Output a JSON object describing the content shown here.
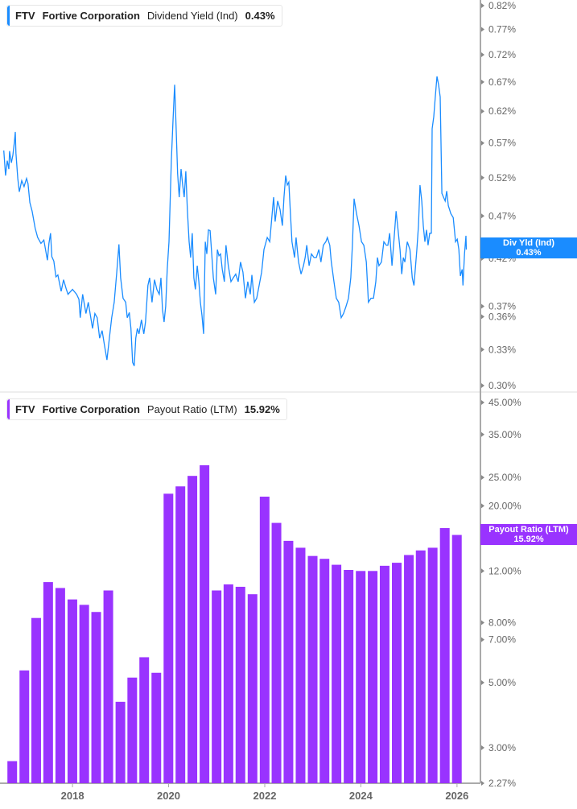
{
  "colors": {
    "yield_line": "#1a8cff",
    "payout_bar": "#9933ff",
    "axis": "#aaaaaa",
    "tick_text": "#666666"
  },
  "top_legend": {
    "ticker": "FTV",
    "company": "Fortive Corporation",
    "metric": "Dividend Yield (Ind)",
    "value": "0.43%"
  },
  "top_tag": {
    "label": "Div Yld (Ind)",
    "value": "0.43%"
  },
  "bottom_legend": {
    "ticker": "FTV",
    "company": "Fortive Corporation",
    "metric": "Payout Ratio (LTM)",
    "value": "15.92%"
  },
  "bottom_tag": {
    "label": "Payout Ratio (LTM)",
    "value": "15.92%"
  },
  "x_tick_labels": [
    "2018",
    "2020",
    "2022",
    "2024",
    "2026"
  ],
  "chart_data": [
    {
      "type": "line",
      "series_label": "Dividend Yield (Ind)",
      "yscale": "log",
      "ylim": [
        0.3,
        0.82
      ],
      "xlim": [
        "2016-06-29",
        "2026-06-28"
      ],
      "y_ticks": [
        0.82,
        0.77,
        0.72,
        0.67,
        0.62,
        0.57,
        0.52,
        0.47,
        0.42,
        0.37,
        0.36,
        0.33,
        0.3
      ],
      "y_tick_labels": [
        "0.82%",
        "0.77%",
        "0.72%",
        "0.67%",
        "0.62%",
        "0.57%",
        "0.52%",
        "0.47%",
        "0.42%",
        "0.37%",
        "0.36%",
        "0.33%",
        "0.30%"
      ],
      "last_value": 0.43,
      "x": [
        "2016-07-28",
        "2016-08-10",
        "2016-08-23",
        "2016-09-04",
        "2016-09-10",
        "2016-09-23",
        "2016-10-05",
        "2016-10-17",
        "2016-10-23",
        "2016-10-28",
        "2016-11-11",
        "2016-11-23",
        "2016-12-11",
        "2016-12-29",
        "2017-01-17",
        "2017-01-28",
        "2017-02-11",
        "2017-02-28",
        "2017-03-23",
        "2017-04-11",
        "2017-05-06",
        "2017-05-28",
        "2017-06-24",
        "2017-07-06",
        "2017-07-18",
        "2017-07-28",
        "2017-08-12",
        "2017-08-28",
        "2017-09-12",
        "2017-10-07",
        "2017-10-25",
        "2017-11-13",
        "2017-11-28",
        "2018-01-01",
        "2018-02-01",
        "2018-02-19",
        "2018-03-01",
        "2018-03-19",
        "2018-04-13",
        "2018-05-01",
        "2018-06-02",
        "2018-06-20",
        "2018-07-08",
        "2018-07-26",
        "2018-08-14",
        "2018-09-02",
        "2018-09-20",
        "2018-10-08",
        "2018-10-26",
        "2018-11-14",
        "2018-12-02",
        "2018-12-20",
        "2019-01-02",
        "2019-01-20",
        "2019-02-09",
        "2019-02-21",
        "2019-03-09",
        "2019-03-21",
        "2019-04-03",
        "2019-04-15",
        "2019-04-27",
        "2019-05-09",
        "2019-05-21",
        "2019-06-09",
        "2019-06-27",
        "2019-07-10",
        "2019-07-28",
        "2019-08-10",
        "2019-08-28",
        "2019-09-16",
        "2019-10-04",
        "2019-10-22",
        "2019-11-04",
        "2019-11-16",
        "2019-11-28",
        "2019-12-10",
        "2019-12-22",
        "2020-01-04",
        "2020-01-22",
        "2020-02-04",
        "2020-02-16",
        "2020-02-28",
        "2020-03-10",
        "2020-03-22",
        "2020-04-05",
        "2020-04-17",
        "2020-04-29",
        "2020-05-11",
        "2020-05-23",
        "2020-06-05",
        "2020-06-17",
        "2020-06-29",
        "2020-07-11",
        "2020-07-23",
        "2020-08-06",
        "2020-08-18",
        "2020-08-30",
        "2020-09-11",
        "2020-09-23",
        "2020-10-06",
        "2020-10-18",
        "2020-10-30",
        "2020-11-12",
        "2020-11-24",
        "2020-12-06",
        "2020-12-24",
        "2021-01-06",
        "2021-01-18",
        "2021-01-30",
        "2021-02-12",
        "2021-02-28",
        "2021-03-12",
        "2021-03-30",
        "2021-04-19",
        "2021-05-07",
        "2021-05-25",
        "2021-06-13",
        "2021-07-01",
        "2021-07-19",
        "2021-08-07",
        "2021-08-25",
        "2021-09-13",
        "2021-09-25",
        "2021-10-14",
        "2021-11-01",
        "2021-11-19",
        "2021-12-08",
        "2021-12-26",
        "2022-01-20",
        "2022-02-08",
        "2022-02-26",
        "2022-03-09",
        "2022-03-21",
        "2022-04-09",
        "2022-04-27",
        "2022-05-15",
        "2022-05-27",
        "2022-06-09",
        "2022-06-21",
        "2022-07-03",
        "2022-07-15",
        "2022-07-27",
        "2022-08-15",
        "2022-08-27",
        "2022-09-15",
        "2022-10-04",
        "2022-10-22",
        "2022-11-04",
        "2022-11-16",
        "2022-12-04",
        "2022-12-22",
        "2023-01-10",
        "2023-01-28",
        "2023-02-16",
        "2023-03-04",
        "2023-03-22",
        "2023-04-10",
        "2023-04-22",
        "2023-05-10",
        "2023-05-22",
        "2023-06-11",
        "2023-06-29",
        "2023-07-17",
        "2023-08-05",
        "2023-08-23",
        "2023-09-11",
        "2023-09-29",
        "2023-10-17",
        "2023-10-29",
        "2023-11-11",
        "2023-11-29",
        "2023-12-18",
        "2024-01-06",
        "2024-01-24",
        "2024-02-12",
        "2024-02-28",
        "2024-03-18",
        "2024-04-06",
        "2024-04-24",
        "2024-05-06",
        "2024-05-18",
        "2024-06-06",
        "2024-06-24",
        "2024-07-13",
        "2024-07-25",
        "2024-08-07",
        "2024-08-25",
        "2024-09-13",
        "2024-09-25",
        "2024-10-07",
        "2024-10-25",
        "2024-11-07",
        "2024-11-19",
        "2024-12-01",
        "2024-12-19",
        "2025-01-08",
        "2025-01-26",
        "2025-02-08",
        "2025-02-20",
        "2025-03-02",
        "2025-03-14",
        "2025-03-26",
        "2025-04-08",
        "2025-04-20",
        "2025-05-02",
        "2025-05-14",
        "2025-05-26",
        "2025-06-08",
        "2025-06-20",
        "2025-06-26",
        "2025-07-08",
        "2025-07-20",
        "2025-08-02",
        "2025-08-14",
        "2025-08-26",
        "2025-09-08",
        "2025-09-20",
        "2025-10-03",
        "2025-10-15",
        "2025-10-27",
        "2025-11-15",
        "2025-12-03",
        "2025-12-21",
        "2026-01-03",
        "2026-01-15",
        "2026-01-27",
        "2026-02-09",
        "2026-02-15",
        "2026-02-27",
        "2026-03-10",
        "2026-03-13"
      ],
      "y": [
        0.559,
        0.523,
        0.544,
        0.532,
        0.558,
        0.541,
        0.552,
        0.573,
        0.587,
        0.555,
        0.519,
        0.501,
        0.516,
        0.508,
        0.519,
        0.512,
        0.487,
        0.476,
        0.455,
        0.444,
        0.437,
        0.441,
        0.418,
        0.437,
        0.449,
        0.422,
        0.417,
        0.4,
        0.402,
        0.385,
        0.397,
        0.388,
        0.382,
        0.387,
        0.382,
        0.377,
        0.359,
        0.382,
        0.363,
        0.374,
        0.349,
        0.363,
        0.359,
        0.34,
        0.347,
        0.333,
        0.321,
        0.34,
        0.359,
        0.374,
        0.403,
        0.436,
        0.399,
        0.378,
        0.374,
        0.359,
        0.364,
        0.349,
        0.319,
        0.316,
        0.34,
        0.349,
        0.344,
        0.357,
        0.344,
        0.355,
        0.391,
        0.399,
        0.374,
        0.397,
        0.387,
        0.382,
        0.399,
        0.367,
        0.355,
        0.37,
        0.408,
        0.439,
        0.544,
        0.605,
        0.665,
        0.592,
        0.526,
        0.494,
        0.532,
        0.51,
        0.494,
        0.529,
        0.478,
        0.439,
        0.421,
        0.449,
        0.399,
        0.387,
        0.412,
        0.395,
        0.374,
        0.361,
        0.344,
        0.439,
        0.425,
        0.453,
        0.452,
        0.425,
        0.399,
        0.382,
        0.43,
        0.423,
        0.425,
        0.408,
        0.395,
        0.435,
        0.412,
        0.395,
        0.399,
        0.403,
        0.395,
        0.416,
        0.405,
        0.378,
        0.395,
        0.382,
        0.402,
        0.374,
        0.378,
        0.391,
        0.405,
        0.43,
        0.444,
        0.439,
        0.473,
        0.494,
        0.463,
        0.489,
        0.478,
        0.458,
        0.494,
        0.523,
        0.51,
        0.514,
        0.473,
        0.439,
        0.421,
        0.444,
        0.416,
        0.403,
        0.412,
        0.421,
        0.435,
        0.412,
        0.425,
        0.421,
        0.421,
        0.43,
        0.416,
        0.435,
        0.439,
        0.444,
        0.435,
        0.416,
        0.395,
        0.378,
        0.374,
        0.359,
        0.363,
        0.37,
        0.378,
        0.399,
        0.435,
        0.492,
        0.473,
        0.458,
        0.439,
        0.435,
        0.416,
        0.374,
        0.378,
        0.378,
        0.395,
        0.421,
        0.412,
        0.416,
        0.439,
        0.435,
        0.435,
        0.449,
        0.412,
        0.449,
        0.476,
        0.458,
        0.43,
        0.403,
        0.421,
        0.416,
        0.439,
        0.43,
        0.399,
        0.391,
        0.412,
        0.43,
        0.458,
        0.51,
        0.489,
        0.458,
        0.439,
        0.453,
        0.435,
        0.449,
        0.449,
        0.592,
        0.611,
        0.644,
        0.68,
        0.665,
        0.644,
        0.499,
        0.494,
        0.489,
        0.502,
        0.483,
        0.473,
        0.468,
        0.439,
        0.442,
        0.43,
        0.401,
        0.408,
        0.391,
        0.425,
        0.446,
        0.43
      ]
    },
    {
      "type": "bar",
      "series_label": "Payout Ratio (LTM)",
      "yscale": "log",
      "ylim": [
        2.27,
        45
      ],
      "xlim": [
        "2016-06-29",
        "2026-06-28"
      ],
      "y_ticks": [
        45,
        35,
        25,
        20,
        12,
        8,
        7,
        5,
        3,
        2.27
      ],
      "y_tick_labels": [
        "45.00%",
        "35.00%",
        "25.00%",
        "20.00%",
        "12.00%",
        "8.00%",
        "7.00%",
        "5.00%",
        "3.00%",
        "2.27%"
      ],
      "last_value": 15.92,
      "x": [
        "2016-09-30",
        "2016-12-31",
        "2017-03-31",
        "2017-06-30",
        "2017-09-30",
        "2017-12-31",
        "2018-03-31",
        "2018-06-30",
        "2018-09-30",
        "2018-12-31",
        "2019-03-31",
        "2019-06-30",
        "2019-09-30",
        "2019-12-31",
        "2020-03-31",
        "2020-06-30",
        "2020-09-30",
        "2020-12-31",
        "2021-03-31",
        "2021-06-30",
        "2021-09-30",
        "2021-12-31",
        "2022-03-31",
        "2022-06-30",
        "2022-09-30",
        "2022-12-31",
        "2023-03-31",
        "2023-06-30",
        "2023-09-30",
        "2023-12-31",
        "2024-03-31",
        "2024-06-30",
        "2024-09-30",
        "2024-12-31",
        "2025-03-31",
        "2025-06-30",
        "2025-09-30",
        "2025-12-31"
      ],
      "y": [
        2.7,
        5.5,
        8.3,
        11.0,
        10.5,
        9.6,
        9.2,
        8.7,
        10.3,
        4.3,
        5.2,
        6.1,
        5.4,
        22.0,
        23.3,
        25.3,
        27.5,
        10.3,
        10.8,
        10.6,
        10.0,
        21.5,
        17.5,
        15.2,
        14.4,
        13.5,
        13.2,
        12.6,
        12.1,
        12.0,
        12.0,
        12.5,
        12.8,
        13.6,
        14.1,
        14.4,
        16.8,
        15.92
      ]
    }
  ]
}
